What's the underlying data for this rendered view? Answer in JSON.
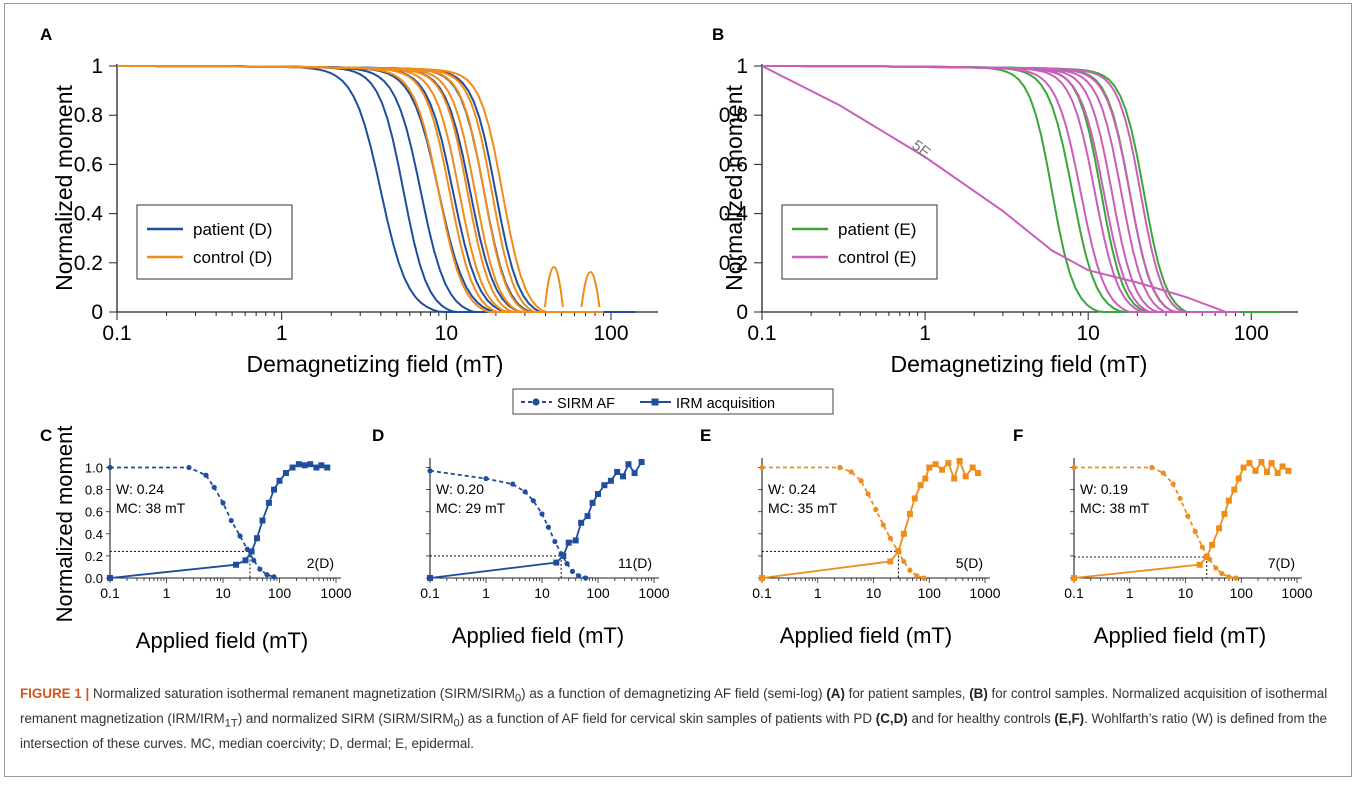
{
  "chart_data": [
    {
      "panel": "A",
      "type": "line",
      "ylabel": "Normalized moment",
      "xlabel": "Demagnetizing field (mT)",
      "xscale": "log",
      "xlim": [
        0.1,
        150
      ],
      "ylim": [
        0,
        1
      ],
      "x_ticks": [
        "0.1",
        "1",
        "10",
        "100"
      ],
      "y_ticks": [
        "0",
        "0.2",
        "0.4",
        "0.6",
        "0.8",
        "1"
      ],
      "legend": [
        "patient (D)",
        "control (D)"
      ],
      "legend_position": "lower-left",
      "series": [
        {
          "name": "patient (D)",
          "color": "#1f4e9e",
          "curves": [
            {
              "x0": 4.0,
              "w": 0.36,
              "end": 120
            },
            {
              "x0": 5.5,
              "w": 0.32,
              "end": 90
            },
            {
              "x0": 7.0,
              "w": 0.34,
              "end": 110
            },
            {
              "x0": 9.0,
              "w": 0.36,
              "end": 120
            },
            {
              "x0": 11.0,
              "w": 0.34,
              "end": 130
            },
            {
              "x0": 14.0,
              "w": 0.33,
              "end": 140
            },
            {
              "x0": 17.0,
              "w": 0.31,
              "end": 120
            },
            {
              "x0": 20.0,
              "w": 0.31,
              "end": 100
            }
          ]
        },
        {
          "name": "control (D)",
          "color": "#f08c1a",
          "curves": [
            {
              "x0": 9.0,
              "w": 0.33,
              "end": 80
            },
            {
              "x0": 10.5,
              "w": 0.32,
              "end": 70
            },
            {
              "x0": 12.0,
              "w": 0.32,
              "end": 85
            },
            {
              "x0": 13.5,
              "w": 0.31,
              "end": 60
            },
            {
              "x0": 15.0,
              "w": 0.31,
              "end": 75
            },
            {
              "x0": 17.0,
              "w": 0.3,
              "end": 90
            },
            {
              "x0": 19.0,
              "w": 0.3,
              "end": 70
            },
            {
              "x0": 22.0,
              "w": 0.3,
              "end": 80
            }
          ]
        }
      ],
      "annotations": [
        {
          "x": 45,
          "y": 0.28
        },
        {
          "x": 75,
          "y": 0.24
        }
      ]
    },
    {
      "panel": "B",
      "type": "line",
      "ylabel": "Normalized moment",
      "xlabel": "Demagnetizing field (mT)",
      "xscale": "log",
      "xlim": [
        0.1,
        150
      ],
      "ylim": [
        0,
        1
      ],
      "x_ticks": [
        "0.1",
        "1",
        "10",
        "100"
      ],
      "y_ticks": [
        "0",
        "0.2",
        "0.4",
        "0.6",
        "0.8",
        "1"
      ],
      "legend": [
        "patient (E)",
        "control (E)"
      ],
      "legend_position": "lower-left",
      "series": [
        {
          "name": "patient (E)",
          "color": "#3aa63a",
          "curves": [
            {
              "x0": 6.0,
              "w": 0.3,
              "end": 140
            },
            {
              "x0": 8.0,
              "w": 0.32,
              "end": 120
            },
            {
              "x0": 12.0,
              "w": 0.3,
              "end": 130
            },
            {
              "x0": 18.0,
              "w": 0.3,
              "end": 150
            },
            {
              "x0": 22.0,
              "w": 0.3,
              "end": 110
            }
          ]
        },
        {
          "name": "control (E)",
          "color": "#c95fb8",
          "curves": [
            {
              "x0": 9.0,
              "w": 0.33,
              "end": 70
            },
            {
              "x0": 11.0,
              "w": 0.32,
              "end": 80
            },
            {
              "x0": 12.5,
              "w": 0.32,
              "end": 65
            },
            {
              "x0": 14.0,
              "w": 0.31,
              "end": 75
            },
            {
              "x0": 16.0,
              "w": 0.31,
              "end": 70
            },
            {
              "x0": 18.0,
              "w": 0.31,
              "end": 85
            },
            {
              "x0": 21.0,
              "w": 0.3,
              "end": 80
            }
          ]
        }
      ],
      "outlier": {
        "label": "5E",
        "x": [
          0.1,
          0.3,
          1,
          3,
          6,
          10,
          20,
          40,
          70
        ],
        "y": [
          1.0,
          0.84,
          0.63,
          0.41,
          0.25,
          0.17,
          0.12,
          0.06,
          0.0
        ]
      }
    },
    {
      "panel": "C",
      "type": "line",
      "xscale": "log",
      "xlim": [
        0.1,
        1000
      ],
      "ylim": [
        0,
        1.05
      ],
      "xlabel": "Applied field (mT)",
      "ylabel": "Normalized moment",
      "x_ticks": [
        "0.1",
        "1",
        "10",
        "100",
        "1000"
      ],
      "y_ticks": [
        "0.0",
        "0.2",
        "0.4",
        "0.6",
        "0.8",
        "1.0"
      ],
      "color": "#1f4e9e",
      "W": "W: 0.24",
      "MC": "MC: 38 mT",
      "sample": "2(D)",
      "intersection": {
        "x": 30,
        "y": 0.24
      },
      "sirm_af": {
        "x": [
          0.1,
          2.5,
          5,
          7,
          10,
          14,
          20,
          27,
          35,
          45,
          60,
          80
        ],
        "y": [
          1.0,
          1.0,
          0.93,
          0.82,
          0.68,
          0.52,
          0.38,
          0.26,
          0.16,
          0.08,
          0.03,
          0.01
        ]
      },
      "irm_acq": {
        "x": [
          0.1,
          17,
          25,
          32,
          40,
          50,
          65,
          80,
          100,
          130,
          170,
          220,
          280,
          350,
          450,
          550,
          700
        ],
        "y": [
          0.0,
          0.12,
          0.16,
          0.24,
          0.36,
          0.52,
          0.68,
          0.8,
          0.88,
          0.95,
          1.0,
          1.03,
          1.02,
          1.03,
          1.0,
          1.02,
          1.0
        ]
      }
    },
    {
      "panel": "D",
      "type": "line",
      "xscale": "log",
      "xlim": [
        0.1,
        1000
      ],
      "ylim": [
        0,
        1.05
      ],
      "xlabel": "Applied field (mT)",
      "x_ticks": [
        "0.1",
        "1",
        "10",
        "100",
        "1000"
      ],
      "color": "#1f4e9e",
      "W": "W: 0.20",
      "MC": "MC: 29 mT",
      "sample": "11(D)",
      "intersection": {
        "x": 22,
        "y": 0.2
      },
      "sirm_af": {
        "x": [
          0.1,
          1,
          3,
          5,
          7,
          10,
          13,
          17,
          22,
          28,
          35,
          45,
          60
        ],
        "y": [
          0.97,
          0.9,
          0.85,
          0.78,
          0.7,
          0.58,
          0.46,
          0.33,
          0.22,
          0.13,
          0.06,
          0.02,
          0.0
        ]
      },
      "irm_acq": {
        "x": [
          0.1,
          18,
          24,
          30,
          40,
          50,
          65,
          80,
          100,
          130,
          170,
          220,
          280,
          350,
          450,
          600
        ],
        "y": [
          0.0,
          0.14,
          0.2,
          0.32,
          0.34,
          0.5,
          0.56,
          0.68,
          0.76,
          0.84,
          0.88,
          0.96,
          0.92,
          1.03,
          0.95,
          1.05
        ]
      }
    },
    {
      "panel": "E",
      "type": "line",
      "xscale": "log",
      "xlim": [
        0.1,
        1000
      ],
      "ylim": [
        0,
        1.05
      ],
      "xlabel": "Applied field (mT)",
      "x_ticks": [
        "0.1",
        "1",
        "10",
        "100",
        "1000"
      ],
      "color": "#f08c1a",
      "W": "W: 0.24",
      "MC": "MC: 35 mT",
      "sample": "5(D)",
      "intersection": {
        "x": 28,
        "y": 0.24
      },
      "sirm_af": {
        "x": [
          0.1,
          2.5,
          4,
          6,
          8,
          11,
          15,
          20,
          27,
          35,
          45,
          60,
          80
        ],
        "y": [
          1.0,
          1.0,
          0.96,
          0.88,
          0.76,
          0.62,
          0.48,
          0.36,
          0.25,
          0.15,
          0.07,
          0.02,
          0.0
        ]
      },
      "irm_acq": {
        "x": [
          0.1,
          20,
          28,
          35,
          45,
          55,
          70,
          85,
          100,
          130,
          170,
          220,
          280,
          350,
          450,
          600,
          750
        ],
        "y": [
          0.0,
          0.15,
          0.24,
          0.4,
          0.58,
          0.72,
          0.84,
          0.9,
          1.0,
          1.03,
          0.98,
          1.04,
          0.9,
          1.06,
          0.92,
          1.0,
          0.95
        ]
      }
    },
    {
      "panel": "F",
      "type": "line",
      "xscale": "log",
      "xlim": [
        0.1,
        1000
      ],
      "ylim": [
        0,
        1.05
      ],
      "xlabel": "Applied field (mT)",
      "x_ticks": [
        "0.1",
        "1",
        "10",
        "100",
        "1000"
      ],
      "color": "#f08c1a",
      "W": "W: 0.19",
      "MC": "MC: 38 mT",
      "sample": "7(D)",
      "intersection": {
        "x": 24,
        "y": 0.19
      },
      "sirm_af": {
        "x": [
          0.1,
          2.5,
          4,
          6,
          8,
          11,
          15,
          20,
          27,
          35,
          45,
          60,
          80
        ],
        "y": [
          1.0,
          1.0,
          0.95,
          0.85,
          0.72,
          0.56,
          0.42,
          0.28,
          0.17,
          0.09,
          0.04,
          0.01,
          0.0
        ]
      },
      "irm_acq": {
        "x": [
          0.1,
          18,
          24,
          30,
          40,
          50,
          60,
          75,
          90,
          110,
          140,
          180,
          230,
          290,
          350,
          450,
          550,
          700
        ],
        "y": [
          0.0,
          0.12,
          0.19,
          0.3,
          0.45,
          0.58,
          0.7,
          0.8,
          0.9,
          1.0,
          1.04,
          0.97,
          1.05,
          0.96,
          1.04,
          0.95,
          1.01,
          0.97
        ]
      }
    }
  ],
  "panel_labels": [
    "A",
    "B",
    "C",
    "D",
    "E",
    "F"
  ],
  "shared_legend": {
    "sirm": "SIRM AF",
    "irm": "IRM acquisition"
  },
  "caption": {
    "head": "FIGURE 1 |",
    "text": "Normalized saturation isothermal remanent magnetization (SIRM/SIRM<sub>0</sub>) as a function of demagnetizing AF field (semi-log) <b>(A)</b> for patient samples, <b>(B)</b> for control samples. Normalized acquisition of isothermal remanent magnetization (IRM/IRM<sub>1T</sub>) and normalized SIRM (SIRM/SIRM<sub>0</sub>) as a function of AF field for cervical skin samples of patients with PD <b>(C,D)</b> and for healthy controls <b>(E,F)</b>. Wohlfarth’s ratio (W) is defined from the intersection of these curves. MC, median coercivity; D, dermal; E, epidermal."
  }
}
